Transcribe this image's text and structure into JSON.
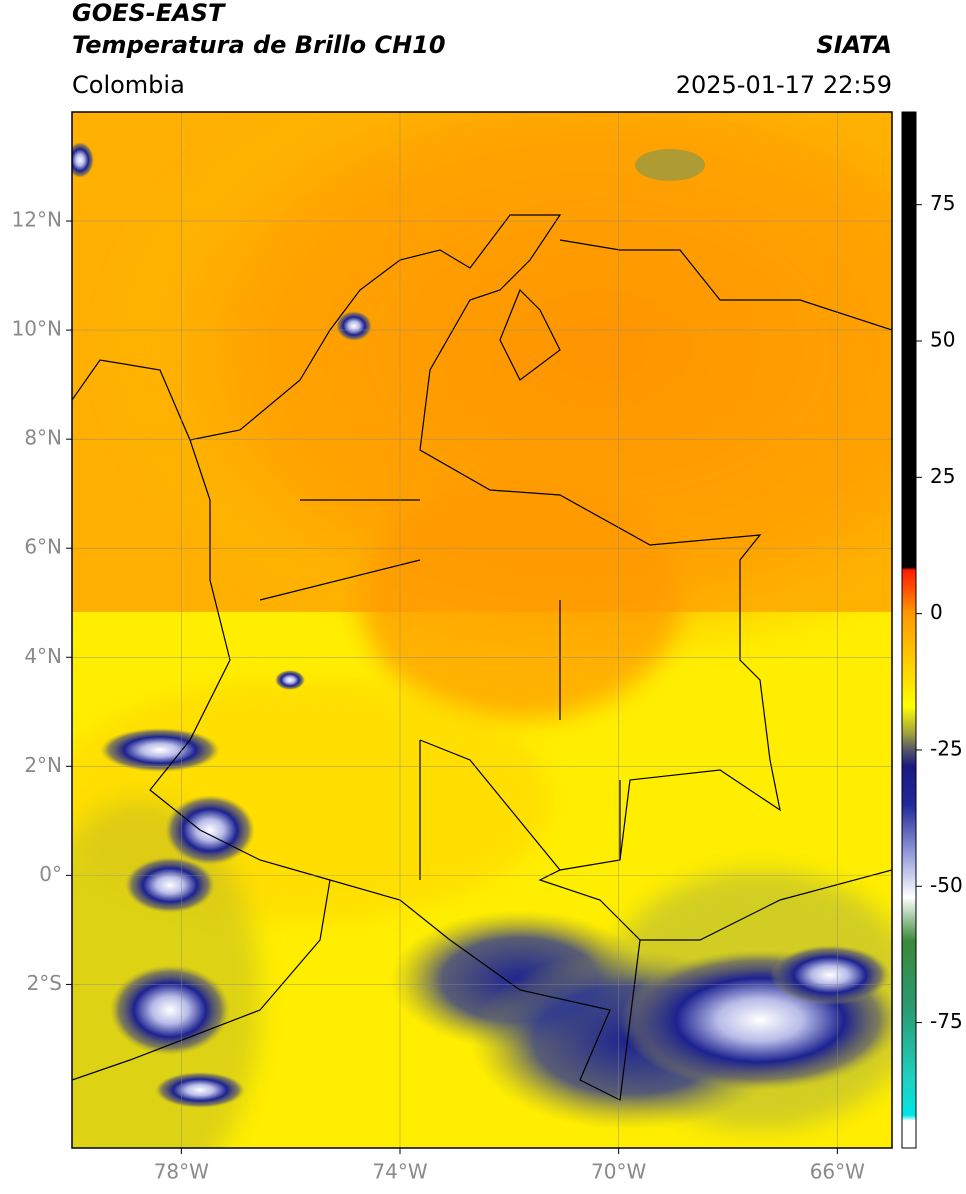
{
  "header": {
    "title_line1": "GOES-EAST",
    "title_line2": "Temperatura de Brillo CH10",
    "source": "SIATA",
    "region": "Colombia",
    "datetime": "2025-01-17 22:59"
  },
  "map": {
    "xlim": [
      -80,
      -65
    ],
    "ylim": [
      -5,
      14
    ],
    "xticks": [
      {
        "value": -78,
        "label": "78°W"
      },
      {
        "value": -74,
        "label": "74°W"
      },
      {
        "value": -70,
        "label": "70°W"
      },
      {
        "value": -66,
        "label": "66°W"
      }
    ],
    "yticks": [
      {
        "value": 12,
        "label": "12°N"
      },
      {
        "value": 10,
        "label": "10°N"
      },
      {
        "value": 8,
        "label": "8°N"
      },
      {
        "value": 6,
        "label": "6°N"
      },
      {
        "value": 4,
        "label": "4°N"
      },
      {
        "value": 2,
        "label": "2°N"
      },
      {
        "value": 0,
        "label": "0°"
      },
      {
        "value": -2,
        "label": "2°S"
      }
    ],
    "grid": true
  },
  "colorbar": {
    "lim": [
      -98,
      92
    ],
    "ticks": [
      75,
      50,
      25,
      0,
      -25,
      -50,
      -75
    ],
    "stops": [
      {
        "value": 92,
        "color": "#000000"
      },
      {
        "value": 8.5,
        "color": "#000000"
      },
      {
        "value": 8,
        "color": "#ff1a00"
      },
      {
        "value": 0,
        "color": "#ff9900"
      },
      {
        "value": -12,
        "color": "#ffe000"
      },
      {
        "value": -17,
        "color": "#ffff00"
      },
      {
        "value": -22,
        "color": "#a0a040"
      },
      {
        "value": -25,
        "color": "#555566"
      },
      {
        "value": -28,
        "color": "#1a1a80"
      },
      {
        "value": -35,
        "color": "#202a9a"
      },
      {
        "value": -45,
        "color": "#a0a8e0"
      },
      {
        "value": -52,
        "color": "#ffffff"
      },
      {
        "value": -60,
        "color": "#3a8a3a"
      },
      {
        "value": -72,
        "color": "#2a9a70"
      },
      {
        "value": -85,
        "color": "#20d0c0"
      },
      {
        "value": -92,
        "color": "#00e5e5"
      },
      {
        "value": -93,
        "color": "#ffffff"
      },
      {
        "value": -98,
        "color": "#ffffff"
      }
    ]
  }
}
